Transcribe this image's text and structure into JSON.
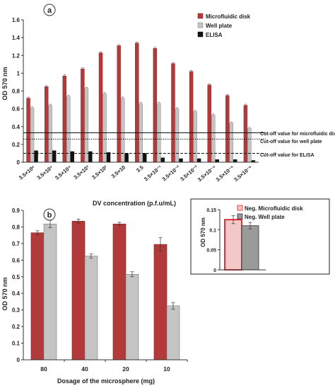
{
  "colors": {
    "microfluidic": "#b23a3a",
    "microfluidic_edge": "#7a1f1f",
    "well": "#c4c4c4",
    "well_edge": "#7a7a7a",
    "elisa": "#111111",
    "axis": "#333333",
    "inset_border": "#222222",
    "neg_micro_fill": "#f2c8c8",
    "neg_micro_edge": "#e02020",
    "neg_well_fill": "#9a9a9a"
  },
  "chart_data": [
    {
      "panel_label": "a",
      "type": "bar",
      "categories": [
        "3.5×10⁶",
        "3.5×10⁵",
        "3.5×10⁴",
        "3.5×10³",
        "3.5×10²",
        "3.5×10",
        "3.5",
        "3.5×10⁻¹",
        "3.5×10⁻²",
        "3.5×10⁻³",
        "3.5×10⁻⁴",
        "3.5×10⁻⁵",
        "3.5×10⁻⁶"
      ],
      "series": [
        {
          "name": "Microfluidic disk",
          "values": [
            0.72,
            0.85,
            0.97,
            1.05,
            1.23,
            1.31,
            1.34,
            1.28,
            1.11,
            1.02,
            0.87,
            0.75,
            0.64
          ]
        },
        {
          "name": "Well plate",
          "values": [
            0.61,
            0.64,
            0.74,
            0.83,
            0.77,
            0.72,
            0.66,
            0.66,
            0.6,
            0.57,
            0.53,
            0.44,
            0.38
          ]
        },
        {
          "name": "ELISA",
          "values": [
            0.13,
            0.13,
            0.12,
            0.12,
            0.11,
            0.1,
            0.1,
            0.05,
            0.04,
            0.04,
            0.03,
            0.03,
            0.02
          ]
        }
      ],
      "cutoffs": [
        {
          "label": "Cut-off value for microfluidic disk",
          "value": 0.33,
          "style": "solid"
        },
        {
          "label": "Cut-off value for well plate",
          "value": 0.26,
          "style": "dotted"
        },
        {
          "label": "Cut-off value for ELISA",
          "value": 0.1,
          "style": "dashed"
        }
      ],
      "xlabel": "DV concentration (p.f.u/mL)",
      "ylabel": "OD 570 nm",
      "ylim": [
        0,
        1.6
      ],
      "yticks": [
        "0",
        "0.2",
        "0.4",
        "0.6",
        "0.8",
        "1",
        "1.2",
        "1.4",
        "1.6"
      ],
      "legend": "top-right"
    },
    {
      "panel_label": "b",
      "type": "bar",
      "categories": [
        "80",
        "40",
        "20",
        "10"
      ],
      "series": [
        {
          "name": "Microfluidic disk",
          "values": [
            0.765,
            0.835,
            0.818,
            0.695
          ],
          "errors": [
            0.012,
            0.012,
            0.01,
            0.04
          ]
        },
        {
          "name": "Well plate",
          "values": [
            0.818,
            0.625,
            0.515,
            0.325
          ],
          "errors": [
            0.022,
            0.012,
            0.015,
            0.02
          ]
        }
      ],
      "xlabel": "Dosage of the microsphere (mg)",
      "ylabel": "OD 570 nm",
      "ylim": [
        0,
        0.9
      ],
      "yticks": [
        "0",
        "0.1",
        "0.2",
        "0.3",
        "0.4",
        "0.5",
        "0.6",
        "0.7",
        "0.8",
        "0.9"
      ],
      "inset": {
        "type": "bar",
        "series": [
          {
            "name": "Neg. Microfluidic disk",
            "values": [
              0.125
            ],
            "errors": [
              0.01
            ]
          },
          {
            "name": "Neg. Well plate",
            "values": [
              0.11
            ],
            "errors": [
              0.008
            ]
          }
        ],
        "ylabel": "OD 570 nm",
        "ylim": [
          0,
          0.15
        ],
        "yticks": [
          "0",
          "0.05",
          "0.1",
          "0.15"
        ],
        "legend": "top"
      }
    }
  ]
}
